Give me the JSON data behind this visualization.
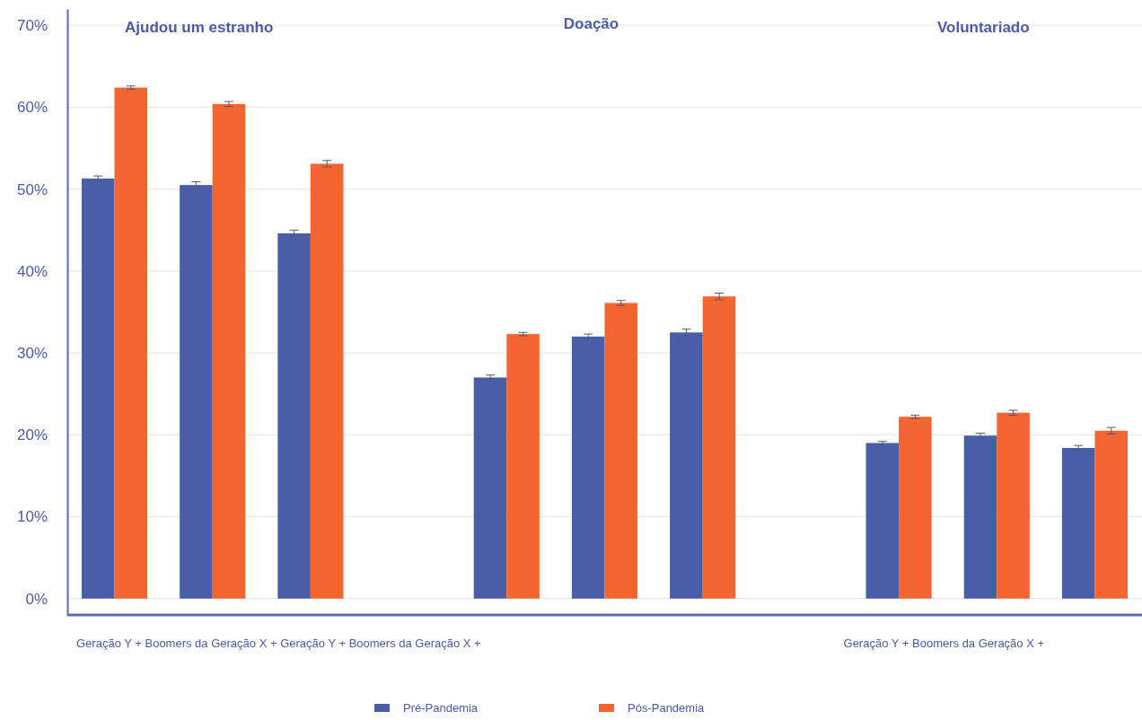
{
  "chart_data": {
    "type": "bar",
    "categories": [
      null,
      null,
      null,
      null,
      null,
      null,
      null,
      null,
      null,
      null,
      null
    ],
    "series": [
      {
        "name": "Pré-Pandemia",
        "color": "#485ea8",
        "values": [
          51.3,
          50.5,
          44.6,
          null,
          27.0,
          32.0,
          32.5,
          null,
          19.0,
          19.9,
          18.4
        ],
        "errors": [
          0.3,
          0.4,
          0.4,
          null,
          0.3,
          0.3,
          0.4,
          null,
          0.2,
          0.3,
          0.3
        ]
      },
      {
        "name": "Pós-Pandemia",
        "color": "#f26530",
        "values": [
          62.4,
          60.4,
          53.1,
          null,
          32.3,
          36.1,
          36.9,
          null,
          22.2,
          22.7,
          20.5
        ],
        "errors": [
          0.2,
          0.3,
          0.4,
          null,
          0.2,
          0.3,
          0.4,
          null,
          0.2,
          0.3,
          0.4
        ]
      }
    ],
    "ylim": [
      -2,
      72
    ],
    "yticks": [
      {
        "value": 0,
        "label": "0%"
      },
      {
        "value": 10,
        "label": "10%"
      },
      {
        "value": 20,
        "label": "20%"
      },
      {
        "value": 30,
        "label": "30%"
      },
      {
        "value": 40,
        "label": "40%"
      },
      {
        "value": 50,
        "label": "50%"
      },
      {
        "value": 60,
        "label": "60%"
      },
      {
        "value": 70,
        "label": "70%"
      }
    ],
    "grid": "y",
    "legend": "bottom",
    "annotations": [
      "Ajudou um estranho",
      "Doação",
      "Voluntariado",
      "Geração Y + Boomers da Geração X + Geração Y + Boomers da Geração X +",
      "Geração Y + Boomers da Geração X +"
    ]
  }
}
